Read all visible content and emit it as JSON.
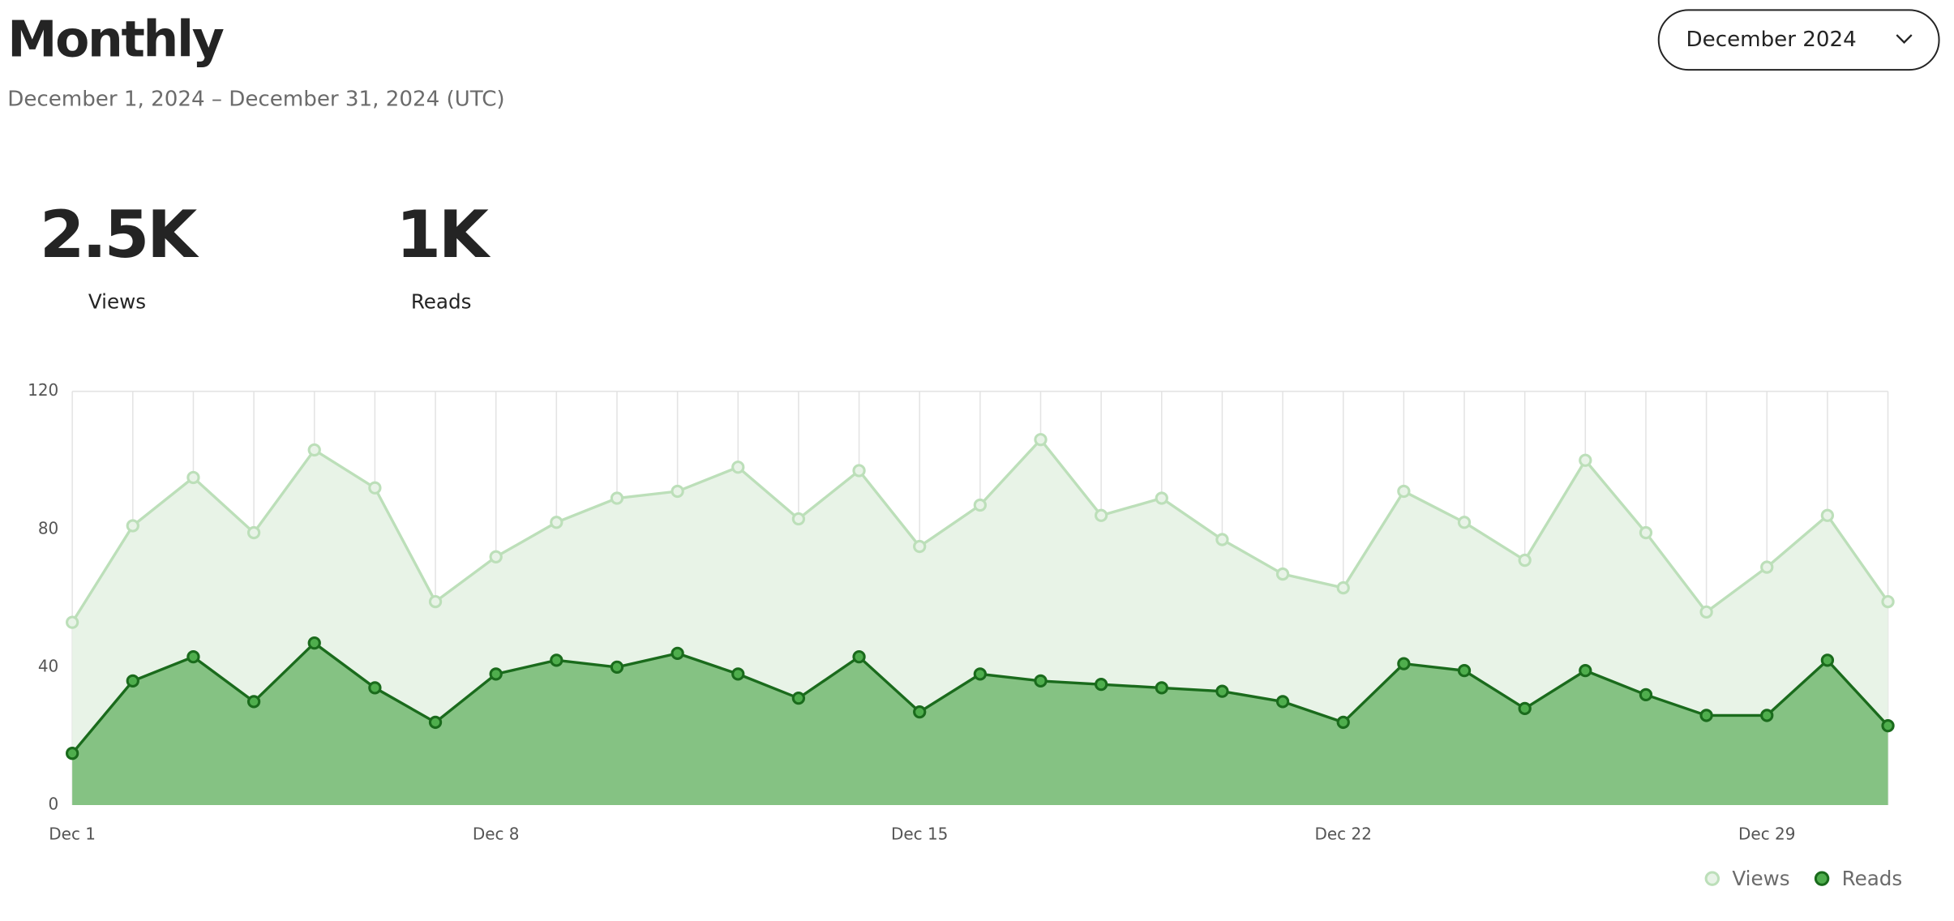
{
  "header": {
    "title": "Monthly",
    "subtitle": "December 1, 2024 – December 31, 2024 (UTC)",
    "dropdown": "December 2024"
  },
  "stats": [
    {
      "value": "2.5K",
      "label": "Views"
    },
    {
      "value": "1K",
      "label": "Reads"
    }
  ],
  "chart_data": {
    "type": "area",
    "categories": [
      "Dec 1",
      null,
      null,
      null,
      null,
      null,
      null,
      "Dec 8",
      null,
      null,
      null,
      null,
      null,
      null,
      "Dec 15",
      null,
      null,
      null,
      null,
      null,
      null,
      "Dec 22",
      null,
      null,
      null,
      null,
      null,
      null,
      "Dec 29",
      null,
      null
    ],
    "series": [
      {
        "name": "Views",
        "color": "#bcdfb9",
        "fill": "#e8f3e7",
        "values": [
          53,
          81,
          95,
          79,
          103,
          92,
          59,
          72,
          82,
          89,
          91,
          98,
          83,
          97,
          75,
          87,
          106,
          84,
          89,
          77,
          67,
          63,
          91,
          82,
          71,
          100,
          79,
          56,
          69,
          84,
          59
        ]
      },
      {
        "name": "Reads",
        "color": "#1a6b1c",
        "fill": "#85c283",
        "values": [
          15,
          36,
          43,
          30,
          47,
          34,
          24,
          38,
          42,
          40,
          44,
          38,
          31,
          43,
          27,
          38,
          36,
          35,
          34,
          33,
          30,
          24,
          41,
          39,
          28,
          39,
          32,
          26,
          26,
          42,
          23
        ]
      }
    ],
    "ylim": [
      0,
      120
    ],
    "yticks": [
      0,
      40,
      80,
      120
    ],
    "grid": "x",
    "legend": "bottom-right"
  }
}
